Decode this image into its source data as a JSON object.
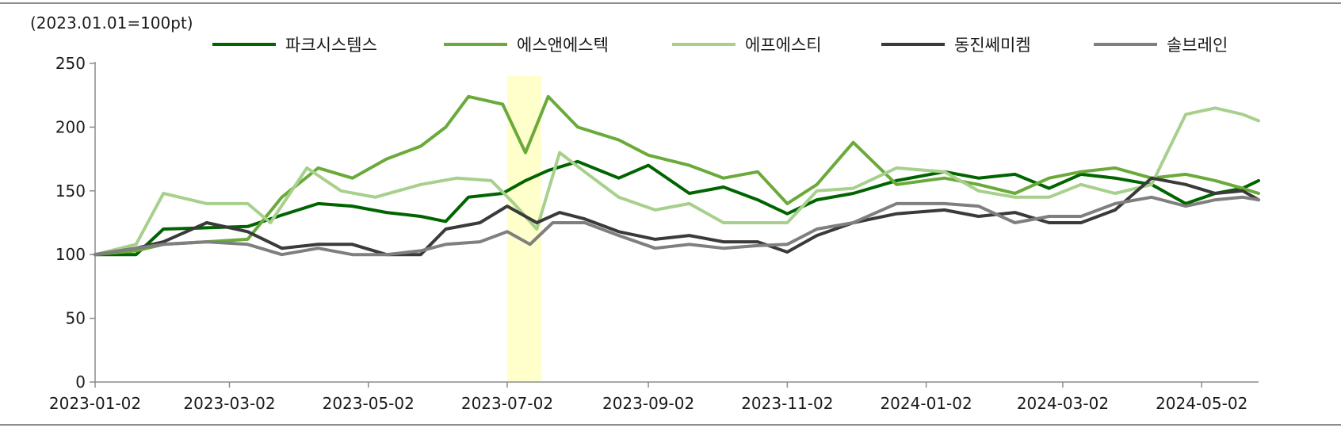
{
  "chart_data": {
    "type": "line",
    "unit_label": "(2023.01.01=100pt)",
    "ylim": [
      0,
      250
    ],
    "yticks": [
      0,
      50,
      100,
      150,
      200,
      250
    ],
    "xlim": [
      "2023-01-02",
      "2024-05-27"
    ],
    "xticks": [
      "2023-01-02",
      "2023-03-02",
      "2023-05-02",
      "2023-07-02",
      "2023-09-02",
      "2023-11-02",
      "2024-01-02",
      "2024-03-02",
      "2024-05-02"
    ],
    "highlight_range": [
      "2023-07-02",
      "2023-07-17"
    ],
    "highlight_color": "#ffffcc",
    "legend_position": "top",
    "grid": false,
    "series": [
      {
        "name": "파크시스템스",
        "color": "#006400",
        "points": [
          [
            "2023-01-02",
            100
          ],
          [
            "2023-01-20",
            100
          ],
          [
            "2023-02-01",
            120
          ],
          [
            "2023-02-20",
            121
          ],
          [
            "2023-03-10",
            122
          ],
          [
            "2023-03-25",
            131
          ],
          [
            "2023-04-10",
            140
          ],
          [
            "2023-04-25",
            138
          ],
          [
            "2023-05-10",
            133
          ],
          [
            "2023-05-25",
            130
          ],
          [
            "2023-06-05",
            126
          ],
          [
            "2023-06-15",
            145
          ],
          [
            "2023-06-30",
            148
          ],
          [
            "2023-07-10",
            158
          ],
          [
            "2023-07-20",
            166
          ],
          [
            "2023-08-02",
            173
          ],
          [
            "2023-08-20",
            160
          ],
          [
            "2023-09-02",
            170
          ],
          [
            "2023-09-20",
            148
          ],
          [
            "2023-10-05",
            153
          ],
          [
            "2023-10-20",
            143
          ],
          [
            "2023-11-02",
            132
          ],
          [
            "2023-11-15",
            143
          ],
          [
            "2023-12-01",
            148
          ],
          [
            "2023-12-20",
            158
          ],
          [
            "2024-01-10",
            165
          ],
          [
            "2024-01-25",
            160
          ],
          [
            "2024-02-10",
            163
          ],
          [
            "2024-02-25",
            152
          ],
          [
            "2024-03-10",
            163
          ],
          [
            "2024-03-25",
            160
          ],
          [
            "2024-04-10",
            155
          ],
          [
            "2024-04-25",
            140
          ],
          [
            "2024-05-08",
            148
          ],
          [
            "2024-05-20",
            152
          ],
          [
            "2024-05-27",
            158
          ]
        ]
      },
      {
        "name": "에스앤에스텍",
        "color": "#6aaa3a",
        "points": [
          [
            "2023-01-02",
            100
          ],
          [
            "2023-01-20",
            103
          ],
          [
            "2023-02-01",
            108
          ],
          [
            "2023-02-20",
            110
          ],
          [
            "2023-03-10",
            112
          ],
          [
            "2023-03-25",
            145
          ],
          [
            "2023-04-10",
            168
          ],
          [
            "2023-04-25",
            160
          ],
          [
            "2023-05-10",
            175
          ],
          [
            "2023-05-25",
            185
          ],
          [
            "2023-06-05",
            200
          ],
          [
            "2023-06-15",
            224
          ],
          [
            "2023-06-30",
            218
          ],
          [
            "2023-07-10",
            180
          ],
          [
            "2023-07-20",
            224
          ],
          [
            "2023-08-02",
            200
          ],
          [
            "2023-08-20",
            190
          ],
          [
            "2023-09-02",
            178
          ],
          [
            "2023-09-20",
            170
          ],
          [
            "2023-10-05",
            160
          ],
          [
            "2023-10-20",
            165
          ],
          [
            "2023-11-02",
            140
          ],
          [
            "2023-11-15",
            155
          ],
          [
            "2023-12-01",
            188
          ],
          [
            "2023-12-20",
            155
          ],
          [
            "2024-01-10",
            160
          ],
          [
            "2024-01-25",
            155
          ],
          [
            "2024-02-10",
            148
          ],
          [
            "2024-02-25",
            160
          ],
          [
            "2024-03-10",
            165
          ],
          [
            "2024-03-25",
            168
          ],
          [
            "2024-04-10",
            160
          ],
          [
            "2024-04-25",
            163
          ],
          [
            "2024-05-08",
            158
          ],
          [
            "2024-05-20",
            152
          ],
          [
            "2024-05-27",
            148
          ]
        ]
      },
      {
        "name": "에프에스티",
        "color": "#a8d08d",
        "points": [
          [
            "2023-01-02",
            100
          ],
          [
            "2023-01-20",
            108
          ],
          [
            "2023-02-01",
            148
          ],
          [
            "2023-02-20",
            140
          ],
          [
            "2023-03-10",
            140
          ],
          [
            "2023-03-20",
            125
          ],
          [
            "2023-04-05",
            168
          ],
          [
            "2023-04-20",
            150
          ],
          [
            "2023-05-05",
            145
          ],
          [
            "2023-05-25",
            155
          ],
          [
            "2023-06-10",
            160
          ],
          [
            "2023-06-25",
            158
          ],
          [
            "2023-07-05",
            140
          ],
          [
            "2023-07-15",
            120
          ],
          [
            "2023-07-25",
            180
          ],
          [
            "2023-08-05",
            165
          ],
          [
            "2023-08-20",
            145
          ],
          [
            "2023-09-05",
            135
          ],
          [
            "2023-09-20",
            140
          ],
          [
            "2023-10-05",
            125
          ],
          [
            "2023-10-20",
            125
          ],
          [
            "2023-11-02",
            125
          ],
          [
            "2023-11-15",
            150
          ],
          [
            "2023-12-01",
            152
          ],
          [
            "2023-12-20",
            168
          ],
          [
            "2024-01-10",
            165
          ],
          [
            "2024-01-25",
            150
          ],
          [
            "2024-02-10",
            145
          ],
          [
            "2024-02-25",
            145
          ],
          [
            "2024-03-10",
            155
          ],
          [
            "2024-03-25",
            148
          ],
          [
            "2024-04-10",
            155
          ],
          [
            "2024-04-25",
            210
          ],
          [
            "2024-05-08",
            215
          ],
          [
            "2024-05-20",
            210
          ],
          [
            "2024-05-27",
            205
          ]
        ]
      },
      {
        "name": "동진쎄미켐",
        "color": "#3a3a3a",
        "points": [
          [
            "2023-01-02",
            100
          ],
          [
            "2023-01-20",
            105
          ],
          [
            "2023-02-01",
            110
          ],
          [
            "2023-02-20",
            125
          ],
          [
            "2023-03-10",
            118
          ],
          [
            "2023-03-25",
            105
          ],
          [
            "2023-04-10",
            108
          ],
          [
            "2023-04-25",
            108
          ],
          [
            "2023-05-10",
            100
          ],
          [
            "2023-05-25",
            100
          ],
          [
            "2023-06-05",
            120
          ],
          [
            "2023-06-20",
            125
          ],
          [
            "2023-07-02",
            138
          ],
          [
            "2023-07-15",
            125
          ],
          [
            "2023-07-25",
            133
          ],
          [
            "2023-08-05",
            128
          ],
          [
            "2023-08-20",
            118
          ],
          [
            "2023-09-05",
            112
          ],
          [
            "2023-09-20",
            115
          ],
          [
            "2023-10-05",
            110
          ],
          [
            "2023-10-20",
            110
          ],
          [
            "2023-11-02",
            102
          ],
          [
            "2023-11-15",
            115
          ],
          [
            "2023-12-01",
            125
          ],
          [
            "2023-12-20",
            132
          ],
          [
            "2024-01-10",
            135
          ],
          [
            "2024-01-25",
            130
          ],
          [
            "2024-02-10",
            133
          ],
          [
            "2024-02-25",
            125
          ],
          [
            "2024-03-10",
            125
          ],
          [
            "2024-03-25",
            135
          ],
          [
            "2024-04-10",
            160
          ],
          [
            "2024-04-25",
            155
          ],
          [
            "2024-05-08",
            148
          ],
          [
            "2024-05-20",
            150
          ],
          [
            "2024-05-27",
            143
          ]
        ]
      },
      {
        "name": "솔브레인",
        "color": "#7f7f7f",
        "points": [
          [
            "2023-01-02",
            100
          ],
          [
            "2023-01-20",
            105
          ],
          [
            "2023-02-01",
            108
          ],
          [
            "2023-02-20",
            110
          ],
          [
            "2023-03-10",
            108
          ],
          [
            "2023-03-25",
            100
          ],
          [
            "2023-04-10",
            105
          ],
          [
            "2023-04-25",
            100
          ],
          [
            "2023-05-10",
            100
          ],
          [
            "2023-05-25",
            103
          ],
          [
            "2023-06-05",
            108
          ],
          [
            "2023-06-20",
            110
          ],
          [
            "2023-07-02",
            118
          ],
          [
            "2023-07-12",
            108
          ],
          [
            "2023-07-22",
            125
          ],
          [
            "2023-08-05",
            125
          ],
          [
            "2023-08-20",
            115
          ],
          [
            "2023-09-05",
            105
          ],
          [
            "2023-09-20",
            108
          ],
          [
            "2023-10-05",
            105
          ],
          [
            "2023-10-20",
            107
          ],
          [
            "2023-11-02",
            108
          ],
          [
            "2023-11-15",
            120
          ],
          [
            "2023-12-01",
            125
          ],
          [
            "2023-12-20",
            140
          ],
          [
            "2024-01-10",
            140
          ],
          [
            "2024-01-25",
            138
          ],
          [
            "2024-02-10",
            125
          ],
          [
            "2024-02-25",
            130
          ],
          [
            "2024-03-10",
            130
          ],
          [
            "2024-03-25",
            140
          ],
          [
            "2024-04-10",
            145
          ],
          [
            "2024-04-25",
            138
          ],
          [
            "2024-05-08",
            143
          ],
          [
            "2024-05-20",
            145
          ],
          [
            "2024-05-27",
            143
          ]
        ]
      }
    ]
  }
}
